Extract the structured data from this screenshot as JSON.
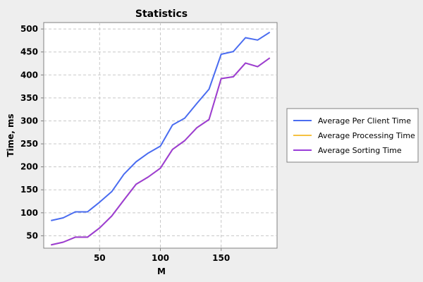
{
  "chart_data": {
    "type": "line",
    "title": "Statistics",
    "xlabel": "M",
    "ylabel": "Time, ms",
    "xlim": [
      4,
      196
    ],
    "ylim": [
      23,
      514
    ],
    "x_ticks": [
      50,
      100,
      150
    ],
    "y_ticks": [
      50,
      100,
      150,
      200,
      250,
      300,
      350,
      400,
      450,
      500
    ],
    "grid": true,
    "legend_position": "right",
    "x": [
      10,
      20,
      30,
      40,
      50,
      60,
      70,
      80,
      90,
      100,
      110,
      120,
      130,
      140,
      150,
      160,
      170,
      180,
      190
    ],
    "series": [
      {
        "name": "Average Per Client Time",
        "color": "#4a6cf0",
        "values": [
          83,
          89,
          102,
          102,
          123,
          146,
          184,
          211,
          230,
          245,
          291,
          306,
          338,
          369,
          445,
          451,
          481,
          476,
          493
        ]
      },
      {
        "name": "Average Processing Time",
        "color": "#f5c242",
        "values": [
          30,
          36,
          47,
          47,
          67,
          93,
          128,
          162,
          178,
          197,
          238,
          257,
          285,
          303,
          392,
          396,
          426,
          418,
          437
        ]
      },
      {
        "name": "Average Sorting Time",
        "color": "#9a3dd9",
        "values": [
          30,
          36,
          47,
          47,
          67,
          93,
          128,
          162,
          178,
          197,
          238,
          257,
          285,
          303,
          392,
          396,
          426,
          418,
          437
        ]
      }
    ]
  }
}
